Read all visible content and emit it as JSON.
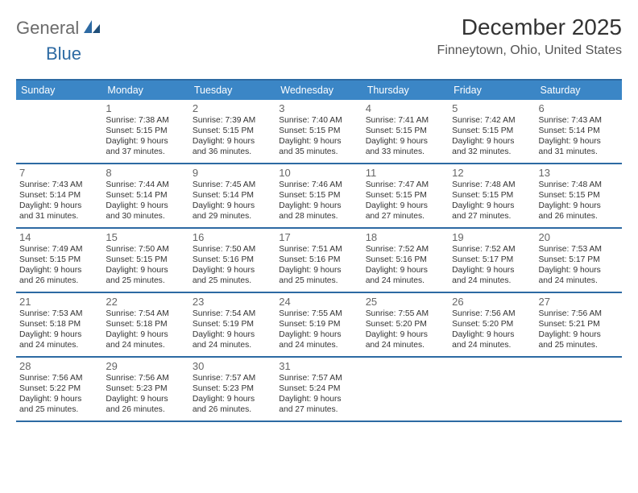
{
  "brand": {
    "text1": "General",
    "text2": "Blue"
  },
  "title": {
    "month": "December 2025",
    "location": "Finneytown, Ohio, United States"
  },
  "colors": {
    "header_bg": "#3b86c6",
    "header_text": "#ffffff",
    "border": "#2d6aa3",
    "daynum": "#666666",
    "body_text": "#333333",
    "logo_gray": "#6b6b6b",
    "logo_blue": "#2d6aa3"
  },
  "day_headers": [
    "Sunday",
    "Monday",
    "Tuesday",
    "Wednesday",
    "Thursday",
    "Friday",
    "Saturday"
  ],
  "weeks": [
    [
      {
        "n": "",
        "lines": []
      },
      {
        "n": "1",
        "lines": [
          "Sunrise: 7:38 AM",
          "Sunset: 5:15 PM",
          "Daylight: 9 hours",
          "and 37 minutes."
        ]
      },
      {
        "n": "2",
        "lines": [
          "Sunrise: 7:39 AM",
          "Sunset: 5:15 PM",
          "Daylight: 9 hours",
          "and 36 minutes."
        ]
      },
      {
        "n": "3",
        "lines": [
          "Sunrise: 7:40 AM",
          "Sunset: 5:15 PM",
          "Daylight: 9 hours",
          "and 35 minutes."
        ]
      },
      {
        "n": "4",
        "lines": [
          "Sunrise: 7:41 AM",
          "Sunset: 5:15 PM",
          "Daylight: 9 hours",
          "and 33 minutes."
        ]
      },
      {
        "n": "5",
        "lines": [
          "Sunrise: 7:42 AM",
          "Sunset: 5:15 PM",
          "Daylight: 9 hours",
          "and 32 minutes."
        ]
      },
      {
        "n": "6",
        "lines": [
          "Sunrise: 7:43 AM",
          "Sunset: 5:14 PM",
          "Daylight: 9 hours",
          "and 31 minutes."
        ]
      }
    ],
    [
      {
        "n": "7",
        "lines": [
          "Sunrise: 7:43 AM",
          "Sunset: 5:14 PM",
          "Daylight: 9 hours",
          "and 31 minutes."
        ]
      },
      {
        "n": "8",
        "lines": [
          "Sunrise: 7:44 AM",
          "Sunset: 5:14 PM",
          "Daylight: 9 hours",
          "and 30 minutes."
        ]
      },
      {
        "n": "9",
        "lines": [
          "Sunrise: 7:45 AM",
          "Sunset: 5:14 PM",
          "Daylight: 9 hours",
          "and 29 minutes."
        ]
      },
      {
        "n": "10",
        "lines": [
          "Sunrise: 7:46 AM",
          "Sunset: 5:15 PM",
          "Daylight: 9 hours",
          "and 28 minutes."
        ]
      },
      {
        "n": "11",
        "lines": [
          "Sunrise: 7:47 AM",
          "Sunset: 5:15 PM",
          "Daylight: 9 hours",
          "and 27 minutes."
        ]
      },
      {
        "n": "12",
        "lines": [
          "Sunrise: 7:48 AM",
          "Sunset: 5:15 PM",
          "Daylight: 9 hours",
          "and 27 minutes."
        ]
      },
      {
        "n": "13",
        "lines": [
          "Sunrise: 7:48 AM",
          "Sunset: 5:15 PM",
          "Daylight: 9 hours",
          "and 26 minutes."
        ]
      }
    ],
    [
      {
        "n": "14",
        "lines": [
          "Sunrise: 7:49 AM",
          "Sunset: 5:15 PM",
          "Daylight: 9 hours",
          "and 26 minutes."
        ]
      },
      {
        "n": "15",
        "lines": [
          "Sunrise: 7:50 AM",
          "Sunset: 5:15 PM",
          "Daylight: 9 hours",
          "and 25 minutes."
        ]
      },
      {
        "n": "16",
        "lines": [
          "Sunrise: 7:50 AM",
          "Sunset: 5:16 PM",
          "Daylight: 9 hours",
          "and 25 minutes."
        ]
      },
      {
        "n": "17",
        "lines": [
          "Sunrise: 7:51 AM",
          "Sunset: 5:16 PM",
          "Daylight: 9 hours",
          "and 25 minutes."
        ]
      },
      {
        "n": "18",
        "lines": [
          "Sunrise: 7:52 AM",
          "Sunset: 5:16 PM",
          "Daylight: 9 hours",
          "and 24 minutes."
        ]
      },
      {
        "n": "19",
        "lines": [
          "Sunrise: 7:52 AM",
          "Sunset: 5:17 PM",
          "Daylight: 9 hours",
          "and 24 minutes."
        ]
      },
      {
        "n": "20",
        "lines": [
          "Sunrise: 7:53 AM",
          "Sunset: 5:17 PM",
          "Daylight: 9 hours",
          "and 24 minutes."
        ]
      }
    ],
    [
      {
        "n": "21",
        "lines": [
          "Sunrise: 7:53 AM",
          "Sunset: 5:18 PM",
          "Daylight: 9 hours",
          "and 24 minutes."
        ]
      },
      {
        "n": "22",
        "lines": [
          "Sunrise: 7:54 AM",
          "Sunset: 5:18 PM",
          "Daylight: 9 hours",
          "and 24 minutes."
        ]
      },
      {
        "n": "23",
        "lines": [
          "Sunrise: 7:54 AM",
          "Sunset: 5:19 PM",
          "Daylight: 9 hours",
          "and 24 minutes."
        ]
      },
      {
        "n": "24",
        "lines": [
          "Sunrise: 7:55 AM",
          "Sunset: 5:19 PM",
          "Daylight: 9 hours",
          "and 24 minutes."
        ]
      },
      {
        "n": "25",
        "lines": [
          "Sunrise: 7:55 AM",
          "Sunset: 5:20 PM",
          "Daylight: 9 hours",
          "and 24 minutes."
        ]
      },
      {
        "n": "26",
        "lines": [
          "Sunrise: 7:56 AM",
          "Sunset: 5:20 PM",
          "Daylight: 9 hours",
          "and 24 minutes."
        ]
      },
      {
        "n": "27",
        "lines": [
          "Sunrise: 7:56 AM",
          "Sunset: 5:21 PM",
          "Daylight: 9 hours",
          "and 25 minutes."
        ]
      }
    ],
    [
      {
        "n": "28",
        "lines": [
          "Sunrise: 7:56 AM",
          "Sunset: 5:22 PM",
          "Daylight: 9 hours",
          "and 25 minutes."
        ]
      },
      {
        "n": "29",
        "lines": [
          "Sunrise: 7:56 AM",
          "Sunset: 5:23 PM",
          "Daylight: 9 hours",
          "and 26 minutes."
        ]
      },
      {
        "n": "30",
        "lines": [
          "Sunrise: 7:57 AM",
          "Sunset: 5:23 PM",
          "Daylight: 9 hours",
          "and 26 minutes."
        ]
      },
      {
        "n": "31",
        "lines": [
          "Sunrise: 7:57 AM",
          "Sunset: 5:24 PM",
          "Daylight: 9 hours",
          "and 27 minutes."
        ]
      },
      {
        "n": "",
        "lines": []
      },
      {
        "n": "",
        "lines": []
      },
      {
        "n": "",
        "lines": []
      }
    ]
  ]
}
